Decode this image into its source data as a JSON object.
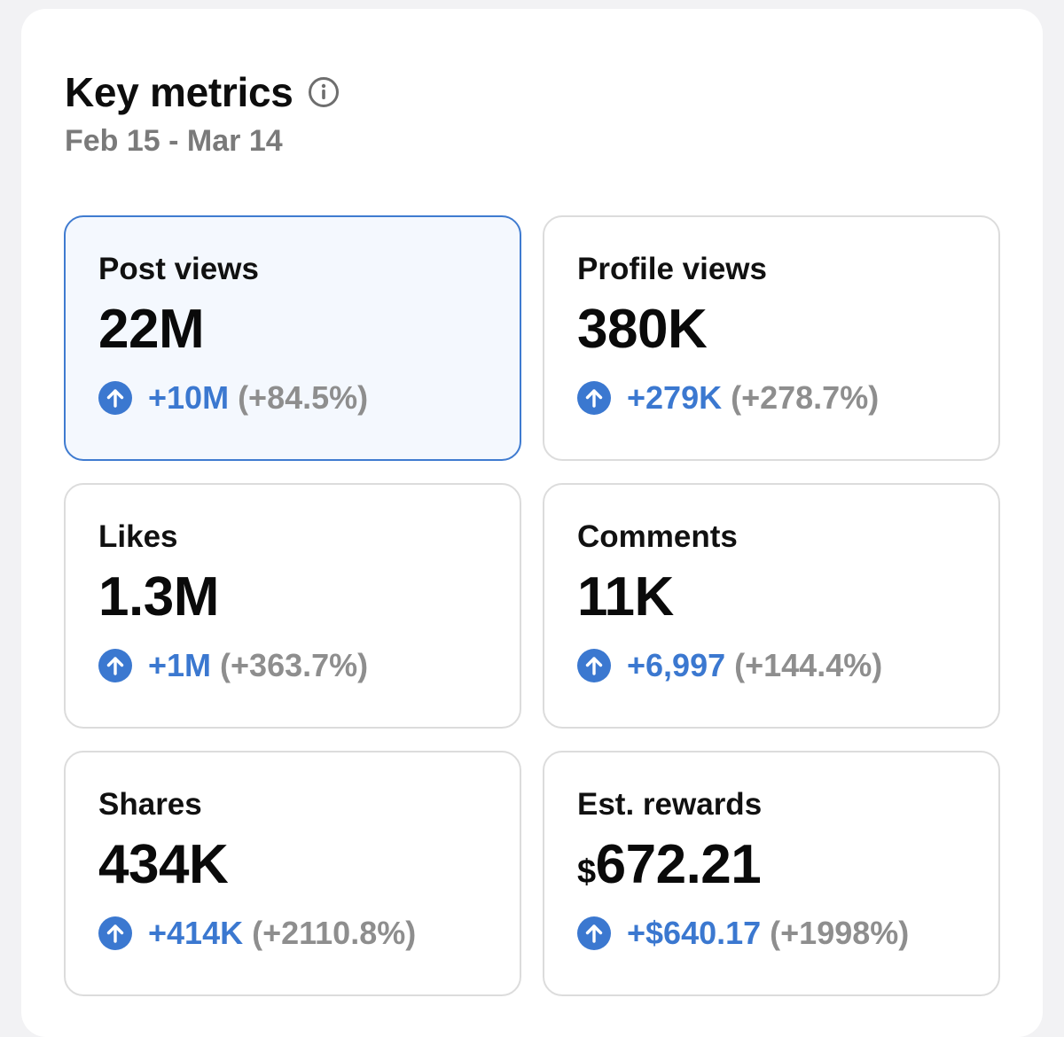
{
  "header": {
    "title": "Key metrics",
    "info_icon": "info-icon",
    "date_range": "Feb 15 - Mar 14"
  },
  "colors": {
    "accent": "#3b78d0",
    "selected_border": "#3f7bd0",
    "muted": "#8e8e8e"
  },
  "metrics": [
    {
      "label": "Post views",
      "currency": "",
      "value": "22M",
      "delta": "+10M",
      "delta_pct": "(+84.5%)",
      "selected": true
    },
    {
      "label": "Profile views",
      "currency": "",
      "value": "380K",
      "delta": "+279K",
      "delta_pct": "(+278.7%)",
      "selected": false
    },
    {
      "label": "Likes",
      "currency": "",
      "value": "1.3M",
      "delta": "+1M",
      "delta_pct": "(+363.7%)",
      "selected": false
    },
    {
      "label": "Comments",
      "currency": "",
      "value": "11K",
      "delta": "+6,997",
      "delta_pct": "(+144.4%)",
      "selected": false
    },
    {
      "label": "Shares",
      "currency": "",
      "value": "434K",
      "delta": "+414K",
      "delta_pct": "(+2110.8%)",
      "selected": false
    },
    {
      "label": "Est. rewards",
      "currency": "$",
      "value": "672.21",
      "delta": "+$640.17",
      "delta_pct": "(+1998%)",
      "selected": false
    }
  ],
  "icons": {
    "trend": "arrow-up-circle-icon"
  }
}
